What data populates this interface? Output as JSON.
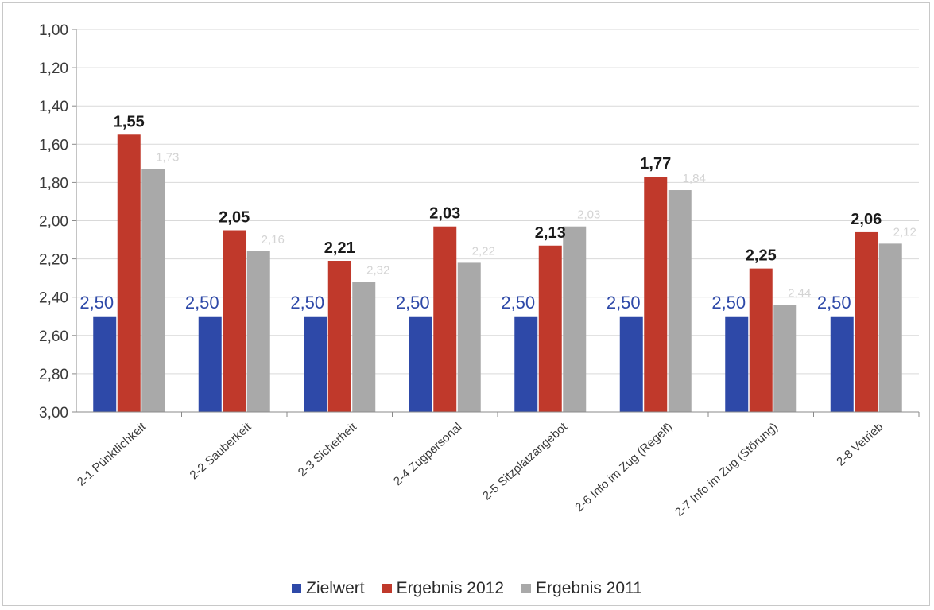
{
  "chart_data": {
    "type": "bar",
    "title": "",
    "xlabel": "",
    "ylabel": "",
    "ylim": [
      1.0,
      3.0
    ],
    "y_inverted": true,
    "y_baseline": 3.0,
    "y_ticks": [
      "1,00",
      "1,20",
      "1,40",
      "1,60",
      "1,80",
      "2,00",
      "2,20",
      "2,40",
      "2,60",
      "2,80",
      "3,00"
    ],
    "y_tick_values": [
      1.0,
      1.2,
      1.4,
      1.6,
      1.8,
      2.0,
      2.2,
      2.4,
      2.6,
      2.8,
      3.0
    ],
    "grid": true,
    "legend_position": "bottom",
    "categories": [
      "2-1 Pünktlichkeit",
      "2-2 Sauberkeit",
      "2-3 Sicherheit",
      "2-4 Zugpersonal",
      "2-5 Sitzplatzangebot",
      "2-6 Info im Zug (Regelf)",
      "2-7 Info im Zug (Störung)",
      "2-8 Vetrieb"
    ],
    "series": [
      {
        "name": "Zielwert",
        "color": "#2e49a8",
        "values": [
          2.5,
          2.5,
          2.5,
          2.5,
          2.5,
          2.5,
          2.5,
          2.5
        ],
        "labels": [
          "2,50",
          "2,50",
          "2,50",
          "2,50",
          "2,50",
          "2,50",
          "2,50",
          "2,50"
        ]
      },
      {
        "name": "Ergebnis 2012",
        "color": "#c0392b",
        "values": [
          1.55,
          2.05,
          2.21,
          2.03,
          2.13,
          1.77,
          2.25,
          2.06
        ],
        "labels": [
          "1,55",
          "2,05",
          "2,21",
          "2,03",
          "2,13",
          "1,77",
          "2,25",
          "2,06"
        ]
      },
      {
        "name": "Ergebnis 2011",
        "color": "#a9a9a9",
        "values": [
          1.73,
          2.16,
          2.32,
          2.22,
          2.03,
          1.84,
          2.44,
          2.12
        ],
        "labels": [
          "1,73",
          "2,16",
          "2,32",
          "2,22",
          "2,03",
          "1,84",
          "2,44",
          "2,12"
        ]
      }
    ]
  }
}
